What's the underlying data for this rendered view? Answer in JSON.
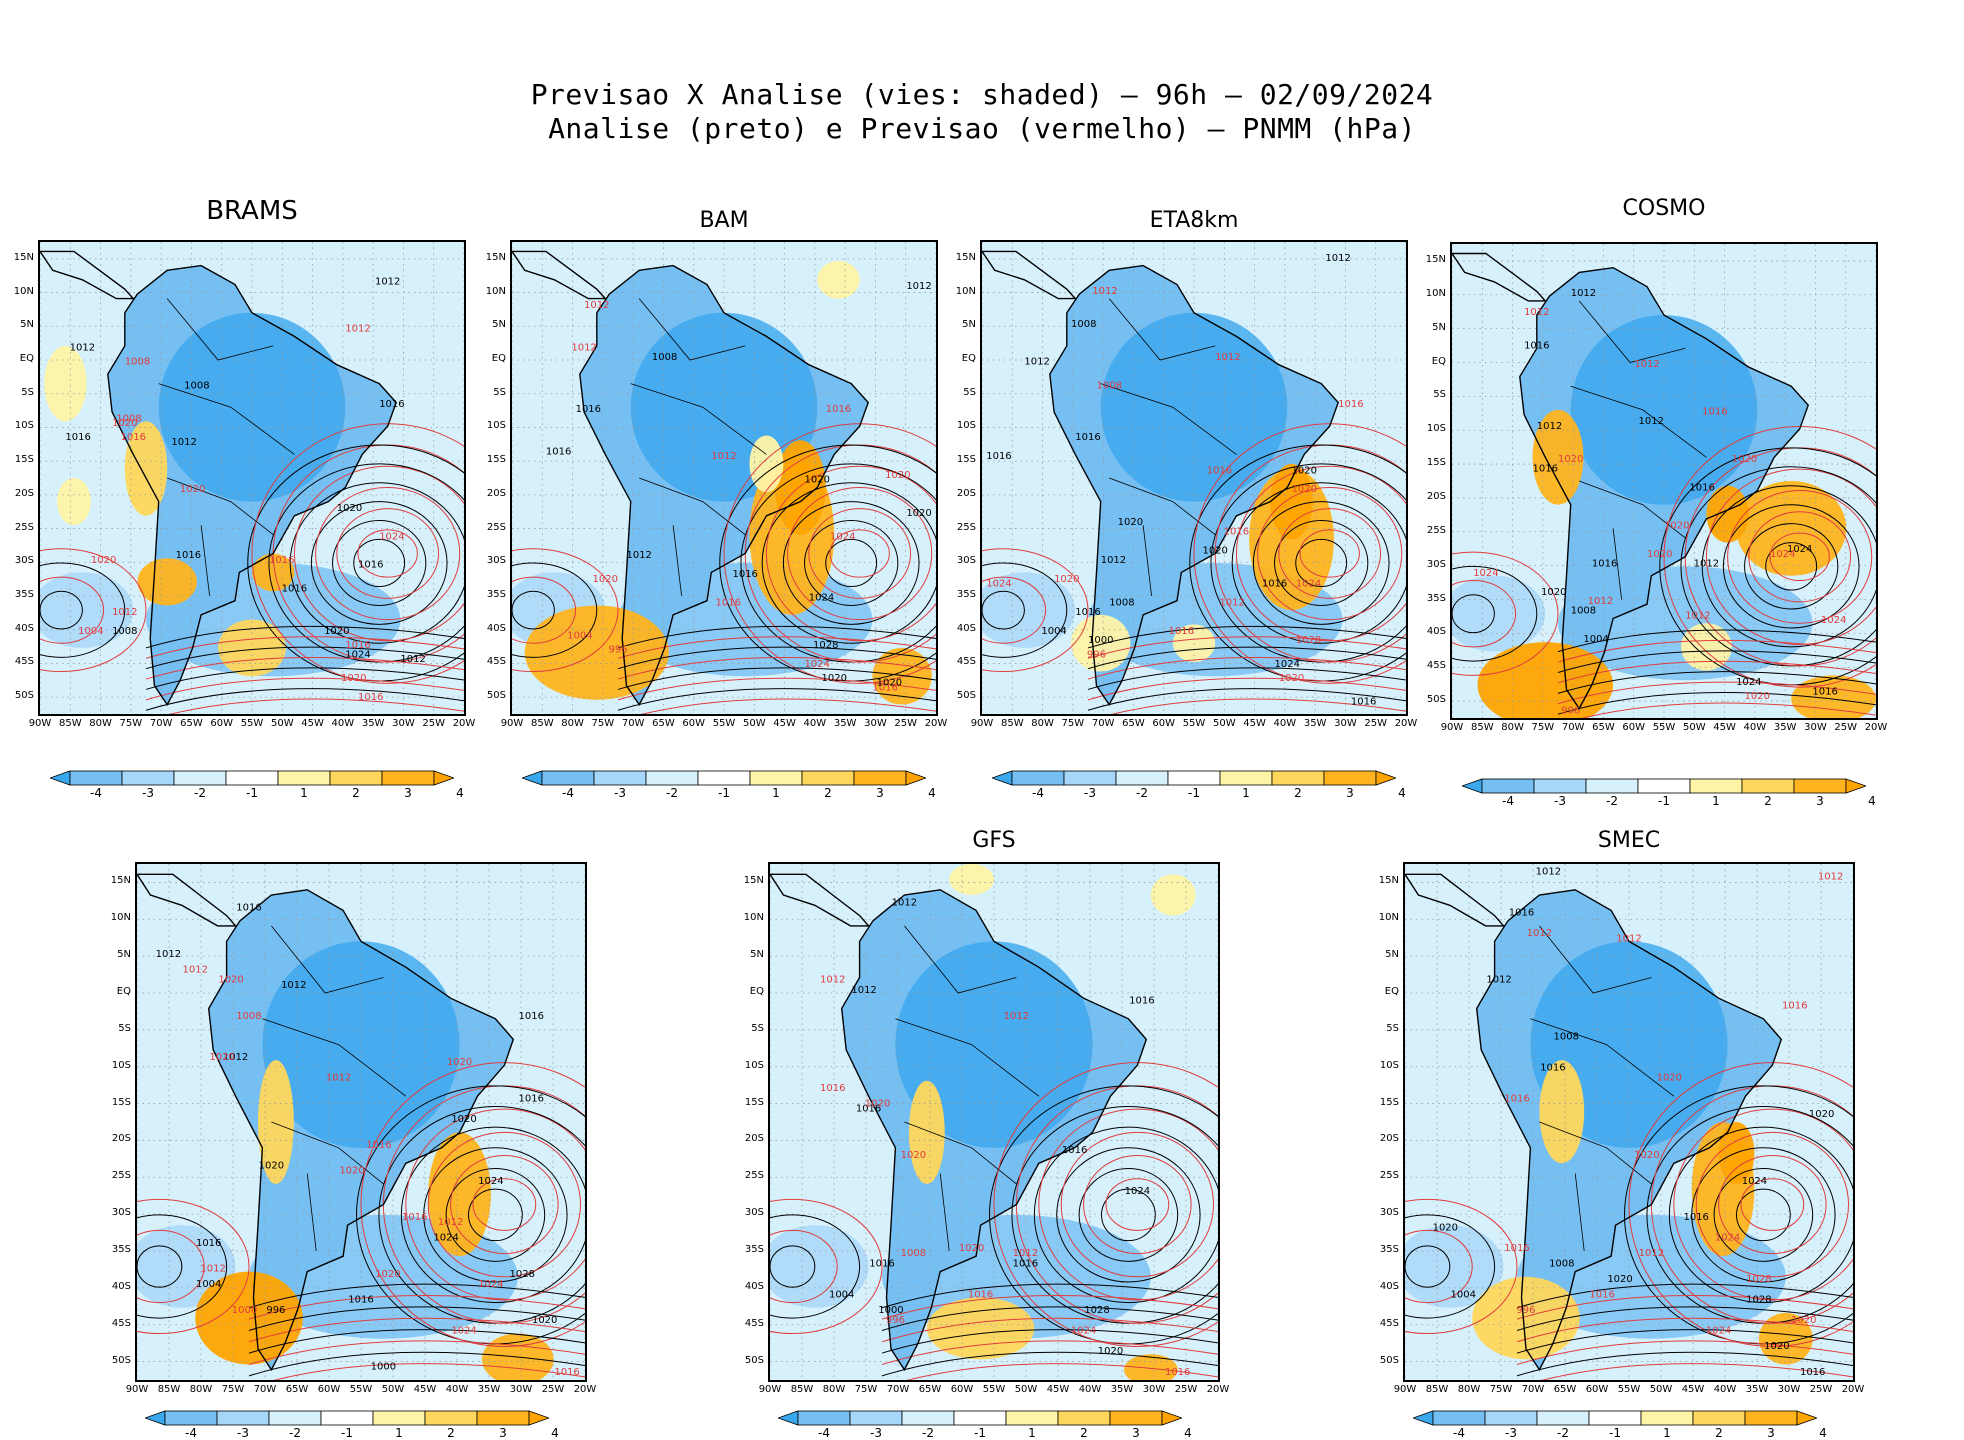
{
  "header": {
    "title_line1": "Previsao X Analise (vies: shaded) – 96h – 02/09/2024",
    "title_line2": "Analise (preto) e Previsao (vermelho) – PNMM (hPa)"
  },
  "latitude_labels": [
    "15N",
    "10N",
    "5N",
    "EQ",
    "5S",
    "10S",
    "15S",
    "20S",
    "25S",
    "30S",
    "35S",
    "40S",
    "45S",
    "50S"
  ],
  "longitude_labels": [
    "90W",
    "85W",
    "80W",
    "75W",
    "70W",
    "65W",
    "60W",
    "55W",
    "50W",
    "45W",
    "40W",
    "35W",
    "30W",
    "25W",
    "20W"
  ],
  "colorbar": {
    "tick_labels": [
      "-4",
      "-3",
      "-2",
      "-1",
      "1",
      "2",
      "3",
      "4"
    ],
    "colors": [
      "#3ba7ee",
      "#76bff3",
      "#a6d6f8",
      "#d6f1fc",
      "#ffffff",
      "#fff3a6",
      "#ffd75c",
      "#ffb41f",
      "#ffa400"
    ]
  },
  "colors": {
    "analysis_contour": "#000000",
    "forecast_contour": "#e03c3c",
    "grid": "#9a9a9a"
  },
  "panels": [
    {
      "id": "brams",
      "title": "BRAMS",
      "labels": [
        [
          "1012",
          0.82,
          0.09
        ],
        [
          "1012",
          0.75,
          0.19
        ],
        [
          "1012",
          0.1,
          0.23
        ],
        [
          "1008",
          0.23,
          0.26
        ],
        [
          "1008",
          0.37,
          0.31
        ],
        [
          "1008",
          0.21,
          0.38
        ],
        [
          "1016",
          0.83,
          0.35
        ],
        [
          "1020",
          0.2,
          0.39
        ],
        [
          "1012",
          0.34,
          0.43
        ],
        [
          "1016",
          0.22,
          0.42
        ],
        [
          "1016",
          0.09,
          0.42
        ],
        [
          "1020",
          0.36,
          0.53
        ],
        [
          "1020",
          0.73,
          0.57
        ],
        [
          "1024",
          0.83,
          0.63
        ],
        [
          "1016",
          0.35,
          0.67
        ],
        [
          "1016",
          0.57,
          0.68
        ],
        [
          "1016",
          0.78,
          0.69
        ],
        [
          "1020",
          0.15,
          0.68
        ],
        [
          "1016",
          0.6,
          0.74
        ],
        [
          "1012",
          0.2,
          0.79
        ],
        [
          "1008",
          0.2,
          0.83
        ],
        [
          "1004",
          0.12,
          0.83
        ],
        [
          "1020",
          0.7,
          0.83
        ],
        [
          "1016",
          0.75,
          0.86
        ],
        [
          "1024",
          0.75,
          0.88
        ],
        [
          "1020",
          0.74,
          0.93
        ],
        [
          "1012",
          0.88,
          0.89
        ],
        [
          "1016",
          0.78,
          0.97
        ]
      ],
      "blobs": [
        [
          0.3,
          0.72,
          0.07,
          0.05,
          3
        ],
        [
          0.55,
          0.7,
          0.05,
          0.04,
          3
        ],
        [
          0.25,
          0.48,
          0.05,
          0.1,
          2
        ],
        [
          0.5,
          0.86,
          0.08,
          0.06,
          2
        ],
        [
          0.06,
          0.3,
          0.05,
          0.08,
          1
        ],
        [
          0.08,
          0.55,
          0.04,
          0.05,
          1
        ]
      ]
    },
    {
      "id": "bam",
      "title": "BAM",
      "labels": [
        [
          "1012",
          0.96,
          0.1
        ],
        [
          "1012",
          0.2,
          0.14
        ],
        [
          "1008",
          0.36,
          0.25
        ],
        [
          "1012",
          0.17,
          0.23
        ],
        [
          "1016",
          0.18,
          0.36
        ],
        [
          "1016",
          0.77,
          0.36
        ],
        [
          "1016",
          0.11,
          0.45
        ],
        [
          "1012",
          0.5,
          0.46
        ],
        [
          "1020",
          0.72,
          0.51
        ],
        [
          "1020",
          0.91,
          0.5
        ],
        [
          "1020",
          0.96,
          0.58
        ],
        [
          "1024",
          0.78,
          0.63
        ],
        [
          "1012",
          0.3,
          0.67
        ],
        [
          "1020",
          0.22,
          0.72
        ],
        [
          "1016",
          0.55,
          0.71
        ],
        [
          "1016",
          0.51,
          0.77
        ],
        [
          "1024",
          0.73,
          0.76
        ],
        [
          "1004",
          0.16,
          0.84
        ],
        [
          "1028",
          0.74,
          0.86
        ],
        [
          "1024",
          0.72,
          0.9
        ],
        [
          "1020",
          0.76,
          0.93
        ],
        [
          "1016",
          0.88,
          0.95
        ],
        [
          "1020",
          0.89,
          0.94
        ],
        [
          "996",
          0.25,
          0.87
        ]
      ],
      "blobs": [
        [
          0.66,
          0.62,
          0.1,
          0.17,
          3
        ],
        [
          0.68,
          0.52,
          0.06,
          0.1,
          4
        ],
        [
          0.2,
          0.87,
          0.17,
          0.1,
          3
        ],
        [
          0.92,
          0.92,
          0.07,
          0.06,
          3
        ],
        [
          0.77,
          0.08,
          0.05,
          0.04,
          1
        ],
        [
          0.6,
          0.47,
          0.04,
          0.06,
          1
        ]
      ]
    },
    {
      "id": "eta8km",
      "title": "ETA8km",
      "labels": [
        [
          "1012",
          0.84,
          0.04
        ],
        [
          "1012",
          0.29,
          0.11
        ],
        [
          "1008",
          0.24,
          0.18
        ],
        [
          "1012",
          0.58,
          0.25
        ],
        [
          "1012",
          0.13,
          0.26
        ],
        [
          "1008",
          0.3,
          0.31
        ],
        [
          "1016",
          0.04,
          0.46
        ],
        [
          "1016",
          0.87,
          0.35
        ],
        [
          "1016",
          0.25,
          0.42
        ],
        [
          "1016",
          0.56,
          0.49
        ],
        [
          "1020",
          0.76,
          0.49
        ],
        [
          "1020",
          0.76,
          0.53
        ],
        [
          "1020",
          0.35,
          0.6
        ],
        [
          "1016",
          0.6,
          0.62
        ],
        [
          "1020",
          0.55,
          0.66
        ],
        [
          "1024",
          0.04,
          0.73
        ],
        [
          "1012",
          0.31,
          0.68
        ],
        [
          "1020",
          0.2,
          0.72
        ],
        [
          "1016",
          0.69,
          0.73
        ],
        [
          "1024",
          0.77,
          0.73
        ],
        [
          "1008",
          0.33,
          0.77
        ],
        [
          "1012",
          0.59,
          0.77
        ],
        [
          "1016",
          0.25,
          0.79
        ],
        [
          "1016",
          0.47,
          0.83
        ],
        [
          "1004",
          0.17,
          0.83
        ],
        [
          "1028",
          0.77,
          0.85
        ],
        [
          "1000",
          0.28,
          0.85
        ],
        [
          "996",
          0.27,
          0.88
        ],
        [
          "1024",
          0.72,
          0.9
        ],
        [
          "1020",
          0.73,
          0.93
        ],
        [
          "1016",
          0.9,
          0.98
        ]
      ],
      "blobs": [
        [
          0.73,
          0.63,
          0.1,
          0.15,
          3
        ],
        [
          0.73,
          0.55,
          0.05,
          0.08,
          4
        ],
        [
          0.28,
          0.85,
          0.07,
          0.06,
          1
        ],
        [
          0.5,
          0.85,
          0.05,
          0.04,
          1
        ]
      ]
    },
    {
      "id": "cosmo",
      "title": "COSMO",
      "labels": [
        [
          "1012",
          0.31,
          0.11
        ],
        [
          "1012",
          0.2,
          0.15
        ],
        [
          "1016",
          0.2,
          0.22
        ],
        [
          "1012",
          0.46,
          0.26
        ],
        [
          "1012",
          0.47,
          0.38
        ],
        [
          "1016",
          0.62,
          0.36
        ],
        [
          "1012",
          0.23,
          0.39
        ],
        [
          "1020",
          0.28,
          0.46
        ],
        [
          "1016",
          0.22,
          0.48
        ],
        [
          "1020",
          0.69,
          0.46
        ],
        [
          "1016",
          0.59,
          0.52
        ],
        [
          "1020",
          0.53,
          0.6
        ],
        [
          "1024",
          0.82,
          0.65
        ],
        [
          "1024",
          0.78,
          0.66
        ],
        [
          "1016",
          0.36,
          0.68
        ],
        [
          "1020",
          0.49,
          0.66
        ],
        [
          "1012",
          0.6,
          0.68
        ],
        [
          "1024",
          0.08,
          0.7
        ],
        [
          "1020",
          0.24,
          0.74
        ],
        [
          "1012",
          0.35,
          0.76
        ],
        [
          "1008",
          0.31,
          0.78
        ],
        [
          "1012",
          0.58,
          0.79
        ],
        [
          "1004",
          0.34,
          0.84
        ],
        [
          "1024",
          0.9,
          0.8
        ],
        [
          "1024",
          0.7,
          0.93
        ],
        [
          "1020",
          0.72,
          0.96
        ],
        [
          "1016",
          0.88,
          0.95
        ],
        [
          "996",
          0.28,
          0.99
        ]
      ],
      "blobs": [
        [
          0.8,
          0.6,
          0.13,
          0.1,
          3
        ],
        [
          0.65,
          0.57,
          0.05,
          0.06,
          4
        ],
        [
          0.22,
          0.93,
          0.16,
          0.09,
          4
        ],
        [
          0.9,
          0.96,
          0.1,
          0.05,
          3
        ],
        [
          0.25,
          0.45,
          0.06,
          0.1,
          3
        ],
        [
          0.6,
          0.85,
          0.06,
          0.05,
          1
        ]
      ]
    },
    {
      "id": "panel5",
      "title": "",
      "labels": [
        [
          "1012",
          0.07,
          0.18
        ],
        [
          "1012",
          0.13,
          0.21
        ],
        [
          "1016",
          0.25,
          0.09
        ],
        [
          "1020",
          0.21,
          0.23
        ],
        [
          "1012",
          0.35,
          0.24
        ],
        [
          "1008",
          0.25,
          0.3
        ],
        [
          "1012",
          0.22,
          0.38
        ],
        [
          "1020",
          0.19,
          0.38
        ],
        [
          "1016",
          0.88,
          0.3
        ],
        [
          "1020",
          0.72,
          0.39
        ],
        [
          "1016",
          0.88,
          0.46
        ],
        [
          "1012",
          0.45,
          0.42
        ],
        [
          "1020",
          0.73,
          0.5
        ],
        [
          "1016",
          0.54,
          0.55
        ],
        [
          "1020",
          0.3,
          0.59
        ],
        [
          "1020",
          0.48,
          0.6
        ],
        [
          "1024",
          0.79,
          0.62
        ],
        [
          "1016",
          0.62,
          0.69
        ],
        [
          "1024",
          0.69,
          0.73
        ],
        [
          "1012",
          0.7,
          0.7
        ],
        [
          "1016",
          0.16,
          0.74
        ],
        [
          "1012",
          0.17,
          0.79
        ],
        [
          "1004",
          0.16,
          0.82
        ],
        [
          "1020",
          0.56,
          0.8
        ],
        [
          "1028",
          0.86,
          0.8
        ],
        [
          "1024",
          0.79,
          0.82
        ],
        [
          "996",
          0.31,
          0.87
        ],
        [
          "1000",
          0.24,
          0.87
        ],
        [
          "1016",
          0.5,
          0.85
        ],
        [
          "1024",
          0.73,
          0.91
        ],
        [
          "1020",
          0.91,
          0.89
        ],
        [
          "1016",
          0.96,
          0.99
        ],
        [
          "1000",
          0.55,
          0.98
        ]
      ],
      "blobs": [
        [
          0.72,
          0.64,
          0.07,
          0.12,
          3
        ],
        [
          0.25,
          0.88,
          0.12,
          0.09,
          4
        ],
        [
          0.85,
          0.96,
          0.08,
          0.05,
          3
        ],
        [
          0.31,
          0.5,
          0.04,
          0.12,
          2
        ]
      ]
    },
    {
      "id": "gfs",
      "title": "GFS",
      "labels": [
        [
          "1012",
          0.3,
          0.08
        ],
        [
          "1012",
          0.14,
          0.23
        ],
        [
          "1012",
          0.21,
          0.25
        ],
        [
          "1012",
          0.55,
          0.3
        ],
        [
          "1016",
          0.83,
          0.27
        ],
        [
          "1016",
          0.14,
          0.44
        ],
        [
          "1016",
          0.22,
          0.48
        ],
        [
          "1020",
          0.24,
          0.47
        ],
        [
          "1016",
          0.68,
          0.56
        ],
        [
          "1020",
          0.32,
          0.57
        ],
        [
          "1024",
          0.82,
          0.64
        ],
        [
          "1012",
          0.57,
          0.76
        ],
        [
          "1016",
          0.57,
          0.78
        ],
        [
          "1020",
          0.45,
          0.75
        ],
        [
          "1016",
          0.25,
          0.78
        ],
        [
          "1008",
          0.32,
          0.76
        ],
        [
          "1004",
          0.16,
          0.84
        ],
        [
          "1016",
          0.47,
          0.84
        ],
        [
          "1000",
          0.27,
          0.87
        ],
        [
          "996",
          0.28,
          0.89
        ],
        [
          "1028",
          0.73,
          0.87
        ],
        [
          "1024",
          0.7,
          0.91
        ],
        [
          "1020",
          0.76,
          0.95
        ],
        [
          "1016",
          0.91,
          0.99
        ]
      ],
      "blobs": [
        [
          0.35,
          0.52,
          0.04,
          0.1,
          2
        ],
        [
          0.47,
          0.9,
          0.12,
          0.06,
          2
        ],
        [
          0.85,
          0.98,
          0.06,
          0.03,
          3
        ],
        [
          0.9,
          0.06,
          0.05,
          0.04,
          1
        ],
        [
          0.45,
          0.03,
          0.05,
          0.03,
          1
        ]
      ]
    },
    {
      "id": "smec",
      "title": "SMEC",
      "labels": [
        [
          "1012",
          0.32,
          0.02
        ],
        [
          "1012",
          0.95,
          0.03
        ],
        [
          "1016",
          0.26,
          0.1
        ],
        [
          "1012",
          0.3,
          0.14
        ],
        [
          "1012",
          0.21,
          0.23
        ],
        [
          "1012",
          0.5,
          0.15
        ],
        [
          "1008",
          0.36,
          0.34
        ],
        [
          "1016",
          0.87,
          0.28
        ],
        [
          "1016",
          0.33,
          0.4
        ],
        [
          "1020",
          0.59,
          0.42
        ],
        [
          "1020",
          0.93,
          0.49
        ],
        [
          "1016",
          0.25,
          0.46
        ],
        [
          "1024",
          0.78,
          0.62
        ],
        [
          "1020",
          0.54,
          0.57
        ],
        [
          "1016",
          0.65,
          0.69
        ],
        [
          "1024",
          0.72,
          0.73
        ],
        [
          "1020",
          0.09,
          0.71
        ],
        [
          "1016",
          0.25,
          0.75
        ],
        [
          "1008",
          0.35,
          0.78
        ],
        [
          "1012",
          0.55,
          0.76
        ],
        [
          "1020",
          0.48,
          0.81
        ],
        [
          "1016",
          0.44,
          0.84
        ],
        [
          "1004",
          0.13,
          0.84
        ],
        [
          "1028",
          0.79,
          0.81
        ],
        [
          "1028",
          0.79,
          0.85
        ],
        [
          "1020",
          0.89,
          0.89
        ],
        [
          "1020",
          0.83,
          0.94
        ],
        [
          "1024",
          0.7,
          0.91
        ],
        [
          "1016",
          0.91,
          0.99
        ],
        [
          "996",
          0.27,
          0.87
        ]
      ],
      "blobs": [
        [
          0.71,
          0.63,
          0.07,
          0.13,
          3
        ],
        [
          0.74,
          0.56,
          0.04,
          0.06,
          4
        ],
        [
          0.27,
          0.88,
          0.12,
          0.08,
          2
        ],
        [
          0.85,
          0.92,
          0.06,
          0.05,
          3
        ],
        [
          0.35,
          0.48,
          0.05,
          0.1,
          2
        ]
      ]
    }
  ]
}
